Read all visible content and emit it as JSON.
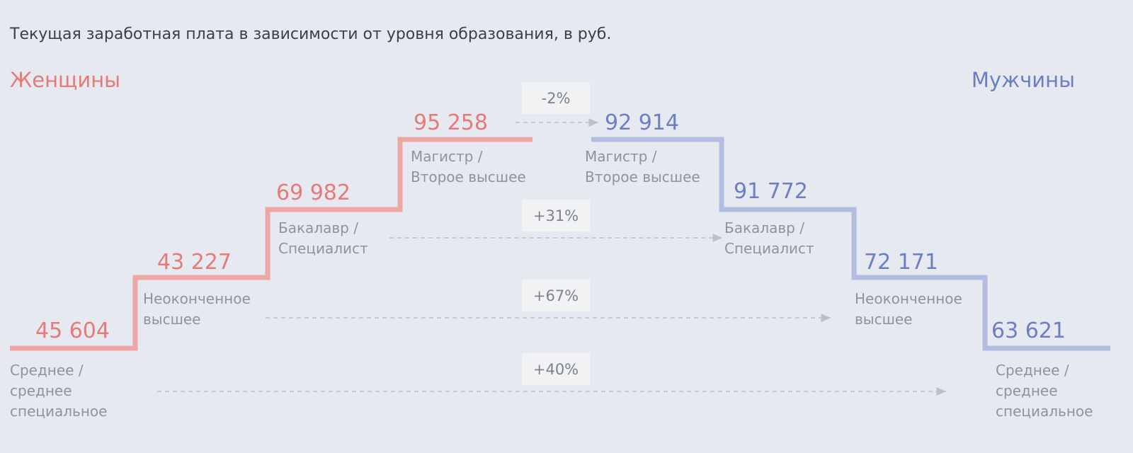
{
  "title": "Текущая заработная плата в зависимости от уровня образования, в руб.",
  "colors": {
    "women": "#e57b78",
    "women_line": "#eca7a4",
    "men": "#6a7fc4",
    "men_line": "#b3bde0",
    "muted": "#8e939c",
    "arrow": "#bcc0c8",
    "badge": "#f1f2f4"
  },
  "chart_data": {
    "type": "step",
    "categories": [
      "Среднее / среднее специальное",
      "Неоконченное высшее",
      "Бакалавр / Специалист",
      "Магистр / Второе высшее"
    ],
    "category_lines": [
      [
        "Среднее /",
        "среднее",
        "специальное"
      ],
      [
        "Неоконченное",
        "высшее"
      ],
      [
        "Бакалавр /",
        "Специалист"
      ],
      [
        "Магистр /",
        "Второе высшее"
      ]
    ],
    "series": [
      {
        "name": "Женщины",
        "value_labels": [
          "45 604",
          "43 227",
          "69 982",
          "95 258"
        ],
        "values": [
          45604,
          43227,
          69982,
          95258
        ]
      },
      {
        "name": "Мужчины",
        "value_labels": [
          "63 621",
          "72 171",
          "91 772",
          "92 914"
        ],
        "values": [
          63621,
          72171,
          91772,
          92914
        ]
      }
    ],
    "differences": [
      "+40%",
      "+67%",
      "+31%",
      "-2%"
    ]
  }
}
